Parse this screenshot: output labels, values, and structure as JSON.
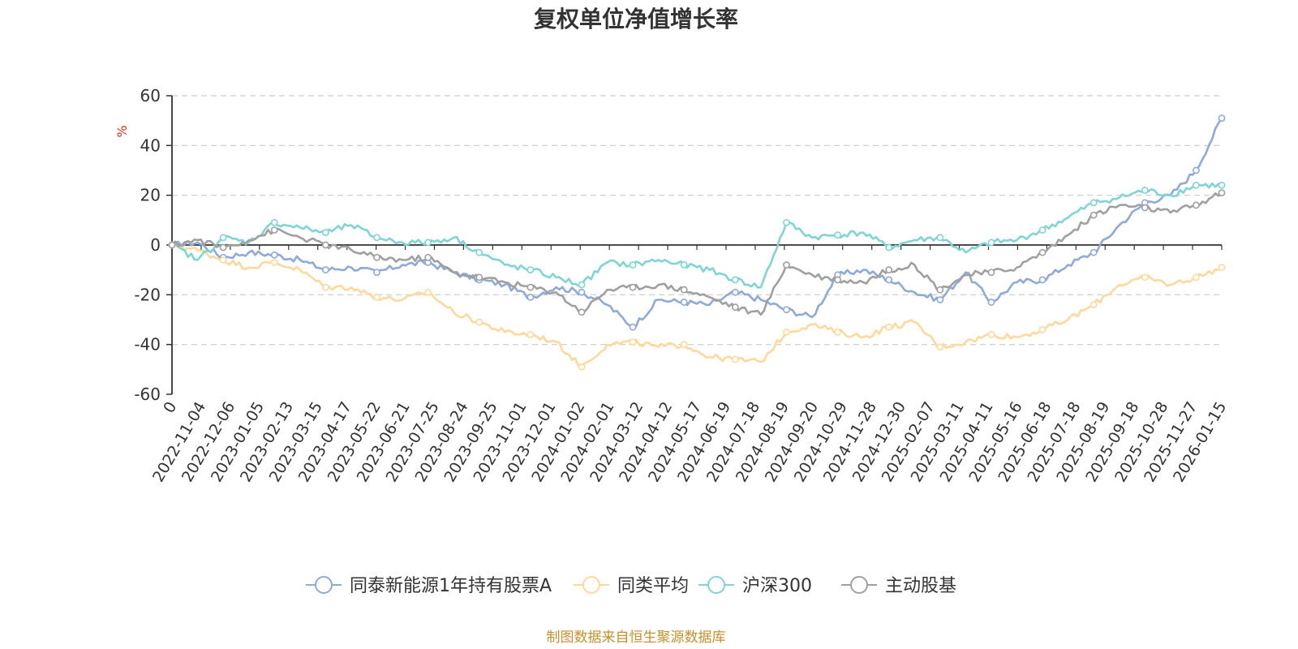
{
  "chart_data": {
    "type": "line",
    "title": "复权单位净值增长率",
    "ylabel": "%",
    "ylim": [
      -60,
      60
    ],
    "yticks": [
      60,
      40,
      20,
      0,
      -20,
      -40,
      -60
    ],
    "grid": true,
    "legend_position": "bottom-center",
    "x_ticks": [
      "0",
      "2022-11-04",
      "2022-12-06",
      "2023-01-05",
      "2023-02-13",
      "2023-03-15",
      "2023-04-17",
      "2023-05-22",
      "2023-06-21",
      "2023-07-25",
      "2023-08-24",
      "2023-09-25",
      "2023-11-01",
      "2023-12-01",
      "2024-01-02",
      "2024-02-01",
      "2024-03-12",
      "2024-04-12",
      "2024-05-17",
      "2024-06-19",
      "2024-07-18",
      "2024-08-19",
      "2024-09-20",
      "2024-10-29",
      "2024-11-28",
      "2024-12-30",
      "2025-02-07",
      "2025-03-11",
      "2025-04-11",
      "2025-05-16",
      "2025-06-18",
      "2025-07-18",
      "2025-08-19",
      "2025-09-18",
      "2025-10-28",
      "2025-11-27",
      "2026-01-15"
    ],
    "series": [
      {
        "name": "同泰新能源1年持有股票A",
        "color": "#8eaadb",
        "values": [
          0,
          1,
          -5,
          -3,
          -4,
          -6,
          -10,
          -9,
          -11,
          -8,
          -7,
          -11,
          -14,
          -16,
          -21,
          -17,
          -19,
          -24,
          -33,
          -22,
          -23,
          -24,
          -19,
          -22,
          -26,
          -29,
          -12,
          -10,
          -14,
          -19,
          -22,
          -11,
          -23,
          -15,
          -14,
          -8,
          -3,
          8,
          17,
          20,
          30,
          51
        ]
      },
      {
        "name": "同类平均",
        "color": "#ffd99a",
        "values": [
          0,
          -2,
          -6,
          -9,
          -7,
          -10,
          -17,
          -17,
          -21,
          -22,
          -19,
          -27,
          -31,
          -35,
          -36,
          -39,
          -49,
          -40,
          -39,
          -41,
          -40,
          -45,
          -46,
          -47,
          -35,
          -32,
          -35,
          -37,
          -33,
          -31,
          -41,
          -39,
          -36,
          -37,
          -34,
          -30,
          -24,
          -16,
          -13,
          -16,
          -13,
          -9
        ]
      },
      {
        "name": "沪深300",
        "color": "#7fd4d4",
        "values": [
          0,
          -6,
          3,
          1,
          9,
          7,
          5,
          8,
          3,
          1,
          1,
          3,
          -3,
          -8,
          -10,
          -13,
          -16,
          -7,
          -8,
          -6,
          -8,
          -10,
          -14,
          -17,
          9,
          3,
          4,
          5,
          -1,
          2,
          3,
          -3,
          1,
          2,
          6,
          11,
          17,
          19,
          22,
          20,
          24,
          24
        ]
      },
      {
        "name": "主动股基",
        "color": "#a0a0a0",
        "values": [
          0,
          2,
          -1,
          2,
          6,
          3,
          0,
          -2,
          -5,
          -6,
          -5,
          -11,
          -13,
          -15,
          -17,
          -19,
          -27,
          -18,
          -17,
          -16,
          -18,
          -21,
          -25,
          -28,
          -8,
          -12,
          -14,
          -15,
          -10,
          -8,
          -18,
          -12,
          -11,
          -9,
          -3,
          4,
          12,
          16,
          15,
          13,
          16,
          21
        ]
      }
    ]
  },
  "source_text": "制图数据来自恒生聚源数据库"
}
